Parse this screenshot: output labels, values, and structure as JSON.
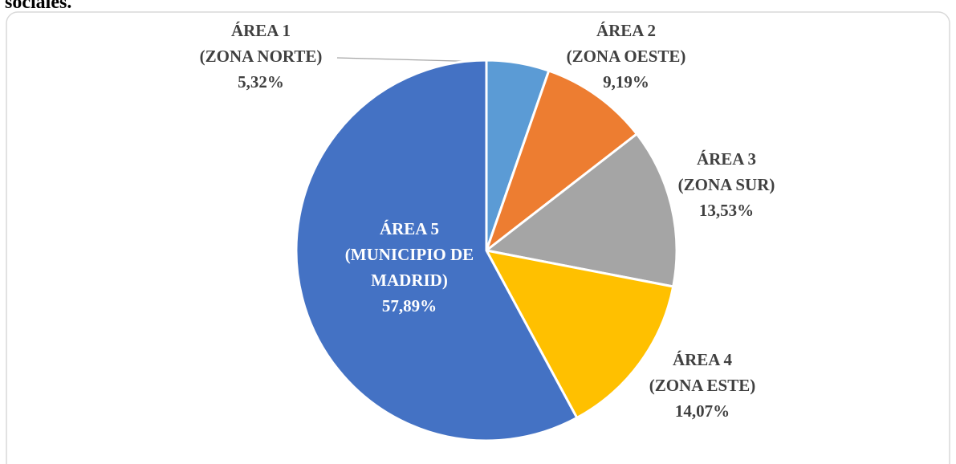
{
  "caption": "sociales.",
  "chart_data": {
    "type": "pie",
    "categories": [
      [
        "ÁREA 1",
        "(ZONA NORTE)"
      ],
      [
        "ÁREA 2",
        "(ZONA OESTE)"
      ],
      [
        "ÁREA 3",
        "(ZONA SUR)"
      ],
      [
        "ÁREA 4",
        "(ZONA ESTE)"
      ],
      [
        "ÁREA 5",
        "(MUNICIPIO DE",
        "MADRID)"
      ]
    ],
    "values": [
      5.32,
      9.19,
      13.53,
      14.07,
      57.89
    ],
    "value_labels": [
      "5,32%",
      "9,19%",
      "13,53%",
      "14,07%",
      "57,89%"
    ],
    "colors": [
      "#5b9bd5",
      "#ed7d31",
      "#a5a5a5",
      "#ffc000",
      "#4472c4"
    ]
  }
}
